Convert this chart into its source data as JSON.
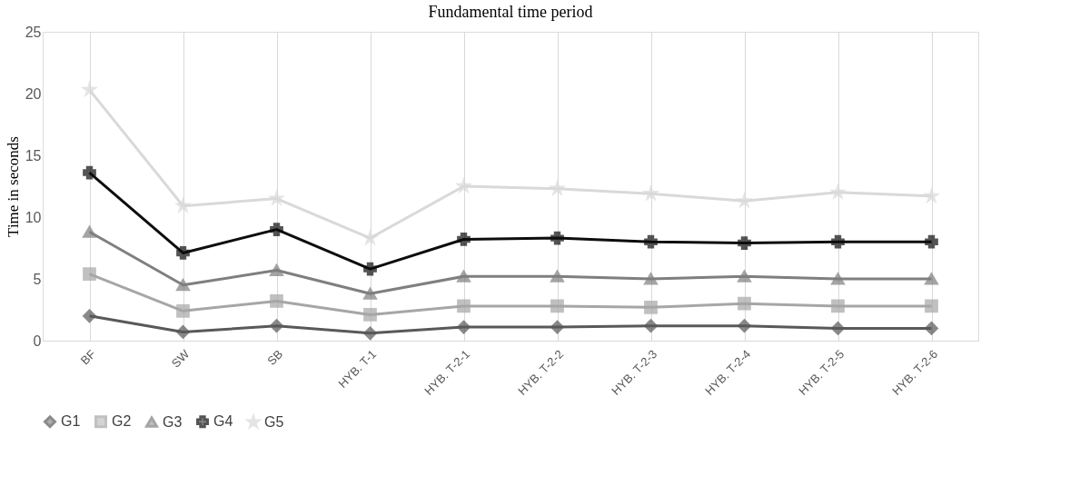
{
  "chart_data": {
    "type": "line",
    "title": "Fundamental time period",
    "ylabel": "Time in seconds",
    "categories": [
      "BF",
      "SW",
      "SB",
      "HYB. T-1",
      "HYB. T-2-1",
      "HYB. T-2-2",
      "HYB. T-2-3",
      "HYB. T-2-4",
      "HYB. T-2-5",
      "HYB. T-2-6"
    ],
    "series": [
      {
        "name": "G1",
        "color": "#595959",
        "marker": "diamond",
        "values": [
          2.0,
          0.7,
          1.2,
          0.6,
          1.1,
          1.1,
          1.2,
          1.2,
          1.0,
          1.0
        ]
      },
      {
        "name": "G2",
        "color": "#a6a6a6",
        "marker": "square",
        "values": [
          5.4,
          2.4,
          3.2,
          2.1,
          2.8,
          2.8,
          2.7,
          3.0,
          2.8,
          2.8
        ]
      },
      {
        "name": "G3",
        "color": "#7f7f7f",
        "marker": "triangle",
        "values": [
          8.8,
          4.5,
          5.7,
          3.8,
          5.2,
          5.2,
          5.0,
          5.2,
          5.0,
          5.0
        ]
      },
      {
        "name": "G4",
        "color": "#0d0d0d",
        "marker": "cross",
        "values": [
          13.6,
          7.1,
          9.0,
          5.8,
          8.2,
          8.3,
          8.0,
          7.9,
          8.0,
          8.0
        ]
      },
      {
        "name": "G5",
        "color": "#d9d9d9",
        "marker": "star",
        "values": [
          20.3,
          10.9,
          11.5,
          8.3,
          12.5,
          12.3,
          11.9,
          11.3,
          12.0,
          11.7
        ]
      }
    ],
    "ylim": [
      0,
      25
    ],
    "yticks": [
      0,
      5,
      10,
      15,
      20,
      25
    ],
    "grid": "x",
    "legend": "bottom",
    "line_style": "solid"
  }
}
